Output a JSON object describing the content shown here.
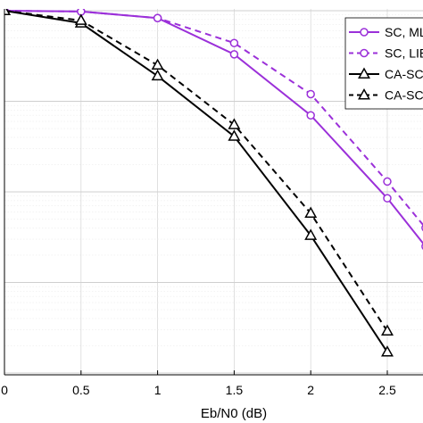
{
  "chart_data": {
    "type": "line",
    "xlabel": "Eb/N0 (dB)",
    "x_ticks": [
      "0",
      "0.5",
      "1",
      "1.5",
      "2",
      "2.5"
    ],
    "xlim": [
      0,
      2.75
    ],
    "ylim": [
      0.0001,
      1
    ],
    "y_scale": "log",
    "grid": true,
    "legend_position": "top-right",
    "series": [
      {
        "name": "SC, MLE",
        "color": "#9b30d9",
        "dash": "solid",
        "marker": "circle",
        "x": [
          0,
          0.5,
          1,
          1.5,
          2,
          2.5,
          2.75
        ],
        "y": [
          1.0,
          0.98,
          0.83,
          0.33,
          0.07,
          0.0085,
          0.0025
        ]
      },
      {
        "name": "SC, LIB",
        "color": "#9b30d9",
        "dash": "dashed",
        "marker": "circle",
        "x": [
          0,
          0.5,
          1,
          1.5,
          2,
          2.5,
          2.75
        ],
        "y": [
          1.0,
          0.98,
          0.83,
          0.44,
          0.12,
          0.013,
          0.004
        ]
      },
      {
        "name": "CA-SCL",
        "color": "#000000",
        "dash": "solid",
        "marker": "triangle",
        "x": [
          0,
          0.5,
          1,
          1.5,
          2,
          2.5
        ],
        "y": [
          1.0,
          0.73,
          0.19,
          0.041,
          0.0033,
          0.00017
        ]
      },
      {
        "name": "CA-SCL",
        "color": "#000000",
        "dash": "dashed",
        "marker": "triangle",
        "x": [
          0,
          0.5,
          1,
          1.5,
          2,
          2.5
        ],
        "y": [
          1.0,
          0.78,
          0.25,
          0.055,
          0.0058,
          0.00029
        ]
      }
    ]
  }
}
